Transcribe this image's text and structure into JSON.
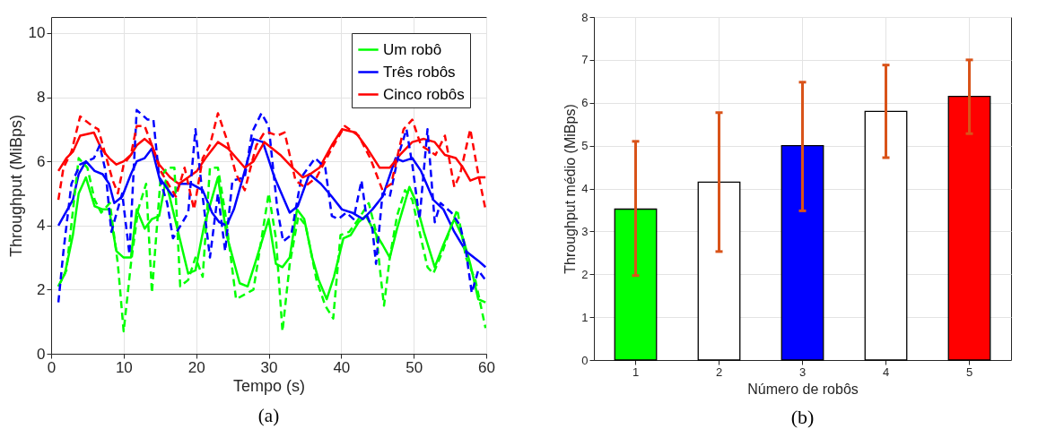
{
  "chart_data": [
    {
      "type": "line",
      "xlabel": "Tempo (s)",
      "ylabel": "Throughput (MiBps)",
      "xlim": [
        0,
        60
      ],
      "xticks": [
        0,
        10,
        20,
        30,
        40,
        50,
        60
      ],
      "ylim": [
        0,
        10.5
      ],
      "yticks": [
        0,
        2,
        4,
        6,
        8,
        10
      ],
      "grid": true,
      "legend": "top right",
      "annotations": [
        "(a)"
      ],
      "series": [
        {
          "name": "Um robô",
          "color": "#00ff00",
          "line_style": "solid",
          "x": [
            1,
            1.9,
            3,
            3.8,
            4.8,
            6,
            7.1,
            8,
            9,
            10,
            11,
            11.8,
            12.9,
            13.9,
            14.9,
            15.8,
            18.9,
            19.9,
            21.1,
            23,
            24.2,
            26,
            27.1,
            28.1,
            30,
            31,
            31.9,
            32.9,
            33.9,
            34.9,
            36,
            36.9,
            38,
            39,
            40.3,
            41.3,
            42.4,
            43.4,
            44.6,
            45.7,
            46.7,
            47.7,
            49.4,
            50.2,
            51.4,
            52.9,
            54.1,
            55.6,
            56.8,
            57.8,
            58.9,
            59.9
          ],
          "values": [
            2.1,
            2.5,
            3.7,
            5.0,
            5.5,
            4.6,
            4.5,
            4.5,
            3.2,
            3.0,
            3.0,
            4.5,
            3.9,
            4.2,
            4.3,
            5.4,
            2.5,
            2.6,
            4.0,
            5.5,
            3.7,
            2.2,
            2.1,
            2.8,
            4.2,
            2.8,
            2.7,
            3.0,
            4.5,
            4.2,
            3.0,
            2.3,
            1.7,
            2.4,
            3.6,
            3.7,
            4.1,
            4.3,
            3.8,
            3.4,
            3.0,
            3.9,
            5.2,
            4.8,
            3.8,
            2.7,
            3.4,
            4.2,
            3.6,
            2.8,
            1.7,
            1.6
          ]
        },
        {
          "name": "Três robôs",
          "color": "#0000ff",
          "line_style": "solid",
          "x": [
            1,
            3,
            3.8,
            4.8,
            6,
            7.1,
            8,
            8.7,
            9.8,
            11,
            11.8,
            12.9,
            13.9,
            14.9,
            16.8,
            17.8,
            19.3,
            20.9,
            22.2,
            23.2,
            24.2,
            25.2,
            26.7,
            27.9,
            29.2,
            30.8,
            32.9,
            34,
            35.6,
            37.2,
            38.7,
            40.1,
            41.5,
            43,
            44.3,
            45.7,
            47.5,
            48.5,
            49.8,
            51,
            52.7,
            54.1,
            55.6,
            57.2,
            58.9,
            59.9
          ],
          "values": [
            4.0,
            4.8,
            5.6,
            6.0,
            5.7,
            5.6,
            5.3,
            4.7,
            4.9,
            5.6,
            6.0,
            6.1,
            6.4,
            5.5,
            4.9,
            5.3,
            5.3,
            5.1,
            4.4,
            4.1,
            4.0,
            4.5,
            5.7,
            6.7,
            6.6,
            5.5,
            4.4,
            4.6,
            5.6,
            5.3,
            4.9,
            4.5,
            4.4,
            4.2,
            4.5,
            4.9,
            6.1,
            6.0,
            6.1,
            5.7,
            4.8,
            4.5,
            3.8,
            3.2,
            2.9,
            2.7
          ]
        },
        {
          "name": "Cinco robôs",
          "color": "#ff0000",
          "line_style": "solid",
          "x": [
            1,
            2.1,
            3,
            4,
            5.9,
            6.9,
            8,
            9,
            10,
            11,
            11.8,
            12.9,
            13.9,
            14.9,
            16.4,
            17.6,
            18.9,
            20.1,
            21.3,
            23,
            24.4,
            26.7,
            27.9,
            29.4,
            31.6,
            33.3,
            34.7,
            35.7,
            37,
            38.7,
            40.1,
            42,
            43.6,
            45.3,
            46.7,
            48.1,
            49.8,
            51.4,
            52.9,
            54.3,
            55.8,
            56.8,
            57.8,
            58.9,
            59.9
          ],
          "values": [
            5.7,
            6.1,
            6.3,
            6.8,
            6.9,
            6.4,
            6.1,
            5.9,
            6.0,
            6.2,
            6.5,
            6.7,
            6.5,
            5.9,
            5.5,
            5.3,
            5.5,
            5.7,
            6.1,
            6.6,
            6.4,
            5.8,
            6.0,
            6.6,
            6.2,
            5.8,
            5.5,
            5.6,
            5.8,
            6.5,
            7.0,
            6.9,
            6.4,
            5.8,
            5.8,
            6.2,
            6.6,
            6.7,
            6.6,
            6.2,
            6.1,
            5.8,
            5.4,
            5.5,
            5.5
          ]
        },
        {
          "color": "#00ff00",
          "line_style": "dashed",
          "x": [
            1,
            2.1,
            3.8,
            5,
            6,
            6.9,
            8.1,
            9.2,
            10,
            11,
            12,
            13.1,
            13.9,
            15.1,
            16,
            17,
            17.8,
            18.9,
            19.9,
            20.9,
            21.9,
            23,
            24,
            25.5,
            27.9,
            30,
            31,
            31.9,
            32.9,
            34.1,
            35.1,
            36.6,
            37.8,
            38.9,
            39.9,
            41.1,
            42.4,
            43.8,
            44.8,
            45.5,
            45.9,
            46.7,
            47.7,
            48.8,
            49.8,
            50.8,
            51.9,
            52.7,
            54,
            55.2,
            56,
            57.2,
            58.5,
            59.9
          ],
          "values": [
            2.1,
            2.6,
            6.1,
            5.8,
            4.8,
            4.4,
            4.7,
            2.8,
            0.7,
            2.8,
            4.5,
            5.3,
            1.9,
            5.5,
            5.8,
            5.8,
            2.1,
            2.3,
            3.0,
            2.4,
            5.8,
            5.8,
            4.4,
            1.7,
            2.0,
            5.0,
            3.6,
            0.7,
            2.8,
            4.3,
            4.0,
            2.3,
            1.5,
            1.1,
            3.7,
            3.8,
            4.2,
            4.7,
            3.8,
            2.3,
            1.5,
            3.0,
            4.3,
            5.1,
            4.8,
            3.8,
            2.7,
            2.5,
            3.2,
            4.0,
            4.5,
            3.0,
            2.3,
            0.8
          ]
        },
        {
          "color": "#0000ff",
          "line_style": "dashed",
          "x": [
            1,
            1.7,
            2.8,
            4,
            5.9,
            6.7,
            7.5,
            8.3,
            9.8,
            10.8,
            11.8,
            13.3,
            14.1,
            14.9,
            16,
            16.8,
            18.9,
            19.9,
            20.9,
            21.9,
            23,
            24,
            25,
            26.7,
            27.7,
            29,
            30,
            31.2,
            32,
            33.1,
            34.5,
            36.4,
            37.8,
            38.7,
            39.6,
            40.7,
            41.7,
            42.8,
            43.4,
            44.3,
            44.8,
            45.7,
            46.7,
            47.9,
            49,
            49.8,
            50.8,
            51.9,
            52.9,
            53.7,
            55.2,
            56.4,
            57.2,
            58,
            58.9,
            59.9
          ],
          "values": [
            1.6,
            3.2,
            5.3,
            5.9,
            6.1,
            6.5,
            5.7,
            3.8,
            5.0,
            3.1,
            7.6,
            7.3,
            7.3,
            5.5,
            4.7,
            3.6,
            4.4,
            7.0,
            4.9,
            3.0,
            5.0,
            3.2,
            5.4,
            5.5,
            6.9,
            7.5,
            7.1,
            4.5,
            3.5,
            3.7,
            5.5,
            6.1,
            5.8,
            4.3,
            4.2,
            4.4,
            4.2,
            5.4,
            4.4,
            3.9,
            2.8,
            5.0,
            4.9,
            6.2,
            7.0,
            5.9,
            4.2,
            7.0,
            4.1,
            4.7,
            4.4,
            4.0,
            3.2,
            1.9,
            2.6,
            2.3
          ]
        },
        {
          "color": "#ff0000",
          "line_style": "dashed",
          "x": [
            1,
            1.7,
            2.8,
            4,
            5.7,
            6.5,
            7.5,
            8.5,
            9.2,
            10,
            11,
            11.8,
            12.9,
            13.9,
            15.1,
            16.4,
            17.2,
            18.4,
            19.7,
            20.9,
            21.9,
            23,
            24.2,
            25.5,
            26.7,
            28.3,
            29.4,
            30,
            31.2,
            32.2,
            33.7,
            34.9,
            36.6,
            38.7,
            40.5,
            42.4,
            44,
            45.7,
            46.9,
            48.6,
            49.8,
            51,
            53,
            54.3,
            55.6,
            56.4,
            57.8,
            58.9,
            59.9
          ],
          "values": [
            4.8,
            5.8,
            6.3,
            7.4,
            7.1,
            7.0,
            6.2,
            5.4,
            5.0,
            5.9,
            6.2,
            7.1,
            7.1,
            6.5,
            5.7,
            5.2,
            4.9,
            5.8,
            4.5,
            6.1,
            6.5,
            7.5,
            6.7,
            5.6,
            5.1,
            6.5,
            6.9,
            6.9,
            6.8,
            6.9,
            5.4,
            5.2,
            5.5,
            6.4,
            7.1,
            6.8,
            6.1,
            5.1,
            5.3,
            7.0,
            7.3,
            6.5,
            6.2,
            6.8,
            5.2,
            5.6,
            7.0,
            5.6,
            4.5
          ]
        }
      ]
    },
    {
      "type": "bar",
      "xlabel": "Número de robôs",
      "ylabel": "Throughput médio (MiBps)",
      "categories": [
        "1",
        "2",
        "3",
        "4",
        "5"
      ],
      "values": [
        3.52,
        4.15,
        5.0,
        5.8,
        6.15
      ],
      "colors": [
        "#00ff00",
        "#ffffff",
        "#0000ff",
        "#ffffff",
        "#ff0000"
      ],
      "errors": [
        [
          1.97,
          5.1
        ],
        [
          2.53,
          5.77
        ],
        [
          3.48,
          6.48
        ],
        [
          4.72,
          6.88
        ],
        [
          5.28,
          7.0
        ]
      ],
      "ylim": [
        0,
        8
      ],
      "yticks": [
        0,
        1,
        2,
        3,
        4,
        5,
        6,
        7,
        8
      ],
      "grid": true,
      "annotations": [
        "(b)"
      ]
    }
  ]
}
